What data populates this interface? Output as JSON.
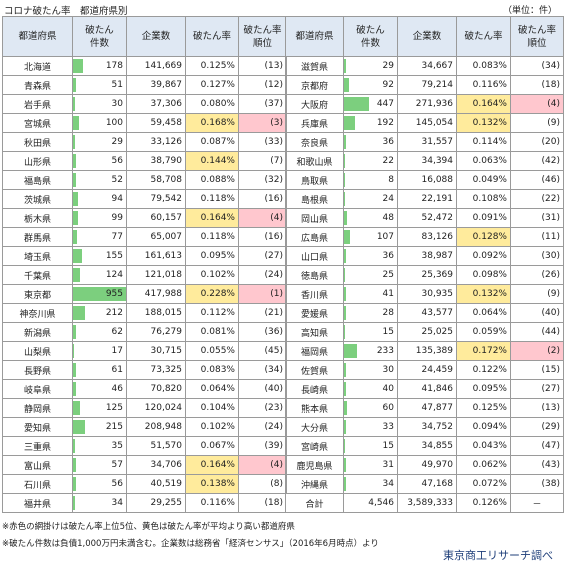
{
  "title": "コロナ破たん率　都道府県別",
  "unit": "（単位：件）",
  "headers": {
    "pref": "都道府県",
    "count_l1": "破たん",
    "count_l2": "件数",
    "companies": "企業数",
    "rate": "破たん率",
    "rank_l1": "破たん率",
    "rank_l2": "順位"
  },
  "left_rows": [
    {
      "pref": "北海道",
      "count": "178",
      "companies": "141,669",
      "rate": "0.125%",
      "rank": "(13)",
      "hl": ""
    },
    {
      "pref": "青森県",
      "count": "51",
      "companies": "39,867",
      "rate": "0.127%",
      "rank": "(12)",
      "hl": ""
    },
    {
      "pref": "岩手県",
      "count": "30",
      "companies": "37,306",
      "rate": "0.080%",
      "rank": "(37)",
      "hl": ""
    },
    {
      "pref": "宮城県",
      "count": "100",
      "companies": "59,458",
      "rate": "0.168%",
      "rank": "(3)",
      "hl": "top"
    },
    {
      "pref": "秋田県",
      "count": "29",
      "companies": "33,126",
      "rate": "0.087%",
      "rank": "(33)",
      "hl": ""
    },
    {
      "pref": "山形県",
      "count": "56",
      "companies": "38,790",
      "rate": "0.144%",
      "rank": "(7)",
      "hl": "above"
    },
    {
      "pref": "福島県",
      "count": "52",
      "companies": "58,708",
      "rate": "0.088%",
      "rank": "(32)",
      "hl": ""
    },
    {
      "pref": "茨城県",
      "count": "94",
      "companies": "79,542",
      "rate": "0.118%",
      "rank": "(16)",
      "hl": ""
    },
    {
      "pref": "栃木県",
      "count": "99",
      "companies": "60,157",
      "rate": "0.164%",
      "rank": "(4)",
      "hl": "top"
    },
    {
      "pref": "群馬県",
      "count": "77",
      "companies": "65,007",
      "rate": "0.118%",
      "rank": "(16)",
      "hl": ""
    },
    {
      "pref": "埼玉県",
      "count": "155",
      "companies": "161,613",
      "rate": "0.095%",
      "rank": "(27)",
      "hl": ""
    },
    {
      "pref": "千葉県",
      "count": "124",
      "companies": "121,018",
      "rate": "0.102%",
      "rank": "(24)",
      "hl": ""
    },
    {
      "pref": "東京都",
      "count": "955",
      "companies": "417,988",
      "rate": "0.228%",
      "rank": "(1)",
      "hl": "top"
    },
    {
      "pref": "神奈川県",
      "count": "212",
      "companies": "188,015",
      "rate": "0.112%",
      "rank": "(21)",
      "hl": ""
    },
    {
      "pref": "新潟県",
      "count": "62",
      "companies": "76,279",
      "rate": "0.081%",
      "rank": "(36)",
      "hl": ""
    },
    {
      "pref": "山梨県",
      "count": "17",
      "companies": "30,715",
      "rate": "0.055%",
      "rank": "(45)",
      "hl": ""
    },
    {
      "pref": "長野県",
      "count": "61",
      "companies": "73,325",
      "rate": "0.083%",
      "rank": "(34)",
      "hl": ""
    },
    {
      "pref": "岐阜県",
      "count": "46",
      "companies": "70,820",
      "rate": "0.064%",
      "rank": "(40)",
      "hl": ""
    },
    {
      "pref": "静岡県",
      "count": "125",
      "companies": "120,024",
      "rate": "0.104%",
      "rank": "(23)",
      "hl": ""
    },
    {
      "pref": "愛知県",
      "count": "215",
      "companies": "208,948",
      "rate": "0.102%",
      "rank": "(24)",
      "hl": ""
    },
    {
      "pref": "三重県",
      "count": "35",
      "companies": "51,570",
      "rate": "0.067%",
      "rank": "(39)",
      "hl": ""
    },
    {
      "pref": "富山県",
      "count": "57",
      "companies": "34,706",
      "rate": "0.164%",
      "rank": "(4)",
      "hl": "top"
    },
    {
      "pref": "石川県",
      "count": "56",
      "companies": "40,519",
      "rate": "0.138%",
      "rank": "(8)",
      "hl": "above"
    },
    {
      "pref": "福井県",
      "count": "34",
      "companies": "29,255",
      "rate": "0.116%",
      "rank": "(18)",
      "hl": ""
    }
  ],
  "right_rows": [
    {
      "pref": "滋賀県",
      "count": "29",
      "companies": "34,667",
      "rate": "0.083%",
      "rank": "(34)",
      "hl": ""
    },
    {
      "pref": "京都府",
      "count": "92",
      "companies": "79,214",
      "rate": "0.116%",
      "rank": "(18)",
      "hl": ""
    },
    {
      "pref": "大阪府",
      "count": "447",
      "companies": "271,936",
      "rate": "0.164%",
      "rank": "(4)",
      "hl": "top"
    },
    {
      "pref": "兵庫県",
      "count": "192",
      "companies": "145,054",
      "rate": "0.132%",
      "rank": "(9)",
      "hl": "above"
    },
    {
      "pref": "奈良県",
      "count": "36",
      "companies": "31,557",
      "rate": "0.114%",
      "rank": "(20)",
      "hl": ""
    },
    {
      "pref": "和歌山県",
      "count": "22",
      "companies": "34,394",
      "rate": "0.063%",
      "rank": "(42)",
      "hl": ""
    },
    {
      "pref": "鳥取県",
      "count": "8",
      "companies": "16,088",
      "rate": "0.049%",
      "rank": "(46)",
      "hl": ""
    },
    {
      "pref": "島根県",
      "count": "24",
      "companies": "22,191",
      "rate": "0.108%",
      "rank": "(22)",
      "hl": ""
    },
    {
      "pref": "岡山県",
      "count": "48",
      "companies": "52,472",
      "rate": "0.091%",
      "rank": "(31)",
      "hl": ""
    },
    {
      "pref": "広島県",
      "count": "107",
      "companies": "83,126",
      "rate": "0.128%",
      "rank": "(11)",
      "hl": "above"
    },
    {
      "pref": "山口県",
      "count": "36",
      "companies": "38,987",
      "rate": "0.092%",
      "rank": "(30)",
      "hl": ""
    },
    {
      "pref": "徳島県",
      "count": "25",
      "companies": "25,369",
      "rate": "0.098%",
      "rank": "(26)",
      "hl": ""
    },
    {
      "pref": "香川県",
      "count": "41",
      "companies": "30,935",
      "rate": "0.132%",
      "rank": "(9)",
      "hl": "above"
    },
    {
      "pref": "愛媛県",
      "count": "28",
      "companies": "43,577",
      "rate": "0.064%",
      "rank": "(40)",
      "hl": ""
    },
    {
      "pref": "高知県",
      "count": "15",
      "companies": "25,025",
      "rate": "0.059%",
      "rank": "(44)",
      "hl": ""
    },
    {
      "pref": "福岡県",
      "count": "233",
      "companies": "135,389",
      "rate": "0.172%",
      "rank": "(2)",
      "hl": "top"
    },
    {
      "pref": "佐賀県",
      "count": "30",
      "companies": "24,459",
      "rate": "0.122%",
      "rank": "(15)",
      "hl": ""
    },
    {
      "pref": "長崎県",
      "count": "40",
      "companies": "41,846",
      "rate": "0.095%",
      "rank": "(27)",
      "hl": ""
    },
    {
      "pref": "熊本県",
      "count": "60",
      "companies": "47,877",
      "rate": "0.125%",
      "rank": "(13)",
      "hl": ""
    },
    {
      "pref": "大分県",
      "count": "33",
      "companies": "34,752",
      "rate": "0.094%",
      "rank": "(29)",
      "hl": ""
    },
    {
      "pref": "宮崎県",
      "count": "15",
      "companies": "34,855",
      "rate": "0.043%",
      "rank": "(47)",
      "hl": ""
    },
    {
      "pref": "鹿児島県",
      "count": "31",
      "companies": "49,970",
      "rate": "0.062%",
      "rank": "(43)",
      "hl": ""
    },
    {
      "pref": "沖縄県",
      "count": "34",
      "companies": "47,168",
      "rate": "0.072%",
      "rank": "(38)",
      "hl": ""
    },
    {
      "pref": "合計",
      "count": "4,546",
      "companies": "3,589,333",
      "rate": "0.126%",
      "rank": "－",
      "hl": "",
      "total": true
    }
  ],
  "bar_max": 955,
  "colors": {
    "header_bg": "#dfe8f3",
    "bar": "#7ccf7e",
    "above_average": "#ffeb9c",
    "top_rank": "#ffc7ce"
  },
  "notes": [
    "※赤色の網掛けは破たん率上位5位、黄色は破たん率が平均より高い都道府県",
    "※破たん件数は負債1,000万円未満含む。企業数は総務省「経済センサス」（2016年6月時点）より"
  ],
  "source": "東京商工リサーチ調べ"
}
